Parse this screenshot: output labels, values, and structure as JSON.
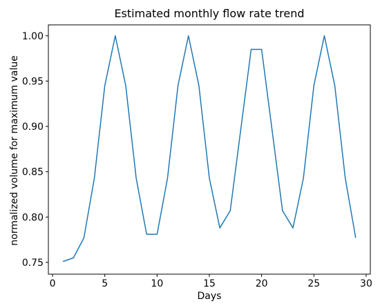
{
  "chart_data": {
    "type": "line",
    "title": "Estimated monthly flow rate trend",
    "xlabel": "Days",
    "ylabel": "normalized volume for maximum value",
    "xlim": [
      -0.4,
      30.4
    ],
    "ylim": [
      0.737,
      1.012
    ],
    "xticks": [
      0,
      5,
      10,
      15,
      20,
      25,
      30
    ],
    "xtick_labels": [
      "0",
      "5",
      "10",
      "15",
      "20",
      "25",
      "30"
    ],
    "yticks": [
      0.75,
      0.8,
      0.85,
      0.9,
      0.95,
      1.0
    ],
    "ytick_labels": [
      "0.75",
      "0.80",
      "0.85",
      "0.90",
      "0.95",
      "1.00"
    ],
    "grid": false,
    "series": [
      {
        "color": "#1f77b4",
        "x": [
          1,
          2,
          3,
          4,
          5,
          6,
          7,
          8,
          9,
          10,
          11,
          12,
          13,
          14,
          15,
          16,
          17,
          18,
          19,
          20,
          21,
          22,
          23,
          24,
          25,
          26,
          27,
          28,
          29
        ],
        "y": [
          0.751,
          0.755,
          0.777,
          0.843,
          0.945,
          1.0,
          0.945,
          0.843,
          0.781,
          0.781,
          0.843,
          0.945,
          1.0,
          0.945,
          0.843,
          0.788,
          0.807,
          0.896,
          0.985,
          0.985,
          0.896,
          0.807,
          0.788,
          0.843,
          0.945,
          1.0,
          0.945,
          0.843,
          0.777
        ]
      }
    ]
  }
}
